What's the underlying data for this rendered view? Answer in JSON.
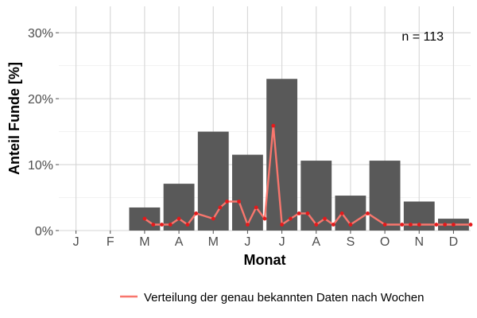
{
  "chart_data": {
    "type": "bar",
    "categories": [
      "J",
      "F",
      "M",
      "A",
      "M",
      "J",
      "J",
      "A",
      "S",
      "O",
      "N",
      "D"
    ],
    "values": [
      0,
      0,
      3.5,
      7.1,
      15.0,
      11.5,
      23.0,
      10.6,
      5.3,
      10.6,
      4.4,
      1.8
    ],
    "xlabel": "Monat",
    "ylabel": "Anteil Funde [%]",
    "ylim": [
      0,
      34
    ],
    "yticks": [
      0,
      10,
      20,
      30
    ],
    "ytick_labels": [
      "0%",
      "10%",
      "20%",
      "30%"
    ],
    "annotation": "n = 113",
    "grid": true,
    "legend_position": "bottom-right",
    "bar_color": "#595959",
    "series": [
      {
        "name": "Verteilung der genau bekannten Daten nach Wochen",
        "type": "line",
        "color": "#f8766d",
        "marker_color": "#e41a1c",
        "x": [
          2.0,
          2.25,
          2.5,
          2.75,
          3.0,
          3.25,
          3.5,
          4.0,
          4.2,
          4.4,
          4.75,
          5.0,
          5.25,
          5.5,
          5.75,
          6.0,
          6.25,
          6.5,
          6.75,
          7.0,
          7.25,
          7.5,
          7.75,
          8.0,
          8.5,
          9.0,
          9.5,
          9.75,
          10.0,
          10.5,
          10.75,
          11.0,
          11.5
        ],
        "y": [
          1.8,
          0.9,
          0.9,
          0.9,
          1.8,
          0.9,
          2.6,
          1.8,
          3.5,
          4.4,
          4.4,
          0.9,
          3.5,
          1.8,
          15.9,
          0.9,
          1.8,
          2.6,
          2.6,
          0.9,
          1.8,
          0.9,
          2.6,
          0.9,
          2.6,
          0.9,
          0.9,
          0.9,
          0.9,
          0.9,
          0.9,
          0.9,
          0.9
        ]
      }
    ]
  }
}
